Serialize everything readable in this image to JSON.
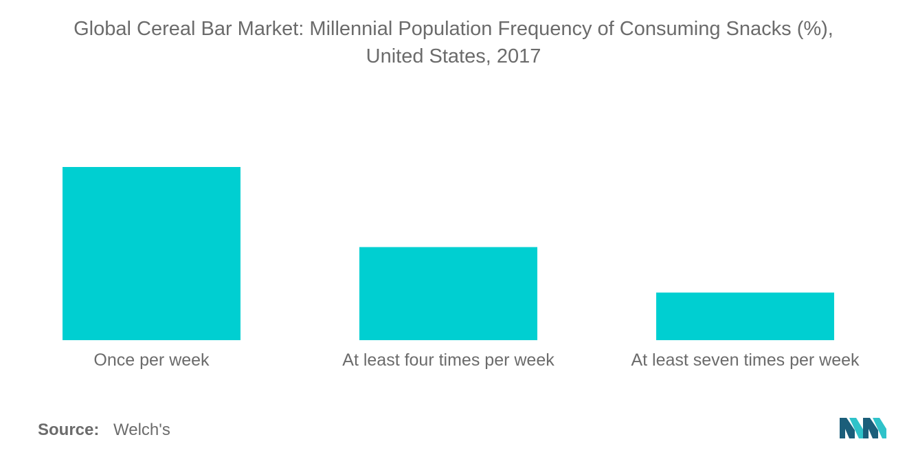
{
  "title_line1": "Global Cereal Bar Market: Millennial Population Frequency of Consuming Snacks (%),",
  "title_line2": "United States, 2017",
  "source": {
    "label": "Source:",
    "value": "Welch's"
  },
  "colors": {
    "bar": "#00cfd1",
    "text": "#6b6b6b",
    "logo_dark": "#1b5e7a",
    "logo_light": "#2fc2c9"
  },
  "chart_data": {
    "type": "bar",
    "title": "Global Cereal Bar Market: Millennial Population Frequency of Consuming Snacks (%), United States, 2017",
    "categories": [
      "Once per week",
      "At least four times per week",
      "At least seven times per week"
    ],
    "values": [
      40,
      21.5,
      11
    ],
    "xlabel": "",
    "ylabel": "",
    "ylim": [
      0,
      40
    ],
    "grid": false,
    "legend": "none"
  }
}
